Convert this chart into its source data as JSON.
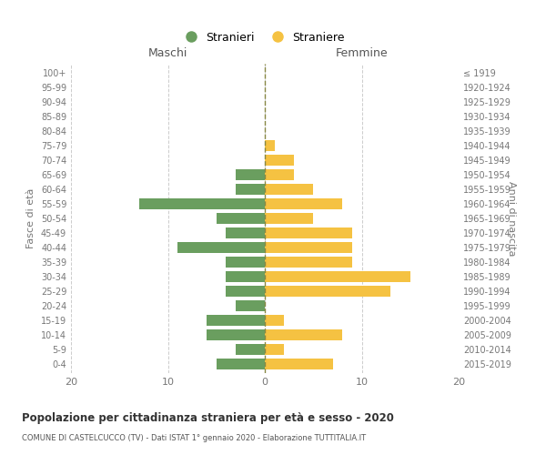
{
  "age_groups": [
    "0-4",
    "5-9",
    "10-14",
    "15-19",
    "20-24",
    "25-29",
    "30-34",
    "35-39",
    "40-44",
    "45-49",
    "50-54",
    "55-59",
    "60-64",
    "65-69",
    "70-74",
    "75-79",
    "80-84",
    "85-89",
    "90-94",
    "95-99",
    "100+"
  ],
  "birth_years": [
    "2015-2019",
    "2010-2014",
    "2005-2009",
    "2000-2004",
    "1995-1999",
    "1990-1994",
    "1985-1989",
    "1980-1984",
    "1975-1979",
    "1970-1974",
    "1965-1969",
    "1960-1964",
    "1955-1959",
    "1950-1954",
    "1945-1949",
    "1940-1944",
    "1935-1939",
    "1930-1934",
    "1925-1929",
    "1920-1924",
    "≤ 1919"
  ],
  "maschi": [
    5,
    3,
    6,
    6,
    3,
    4,
    4,
    4,
    9,
    4,
    5,
    13,
    3,
    3,
    0,
    0,
    0,
    0,
    0,
    0,
    0
  ],
  "femmine": [
    7,
    2,
    8,
    2,
    0,
    13,
    15,
    9,
    9,
    9,
    5,
    8,
    5,
    3,
    3,
    1,
    0,
    0,
    0,
    0,
    0
  ],
  "maschi_color": "#6a9e5f",
  "femmine_color": "#f5c242",
  "title": "Popolazione per cittadinanza straniera per età e sesso - 2020",
  "subtitle": "COMUNE DI CASTELCUCCO (TV) - Dati ISTAT 1° gennaio 2020 - Elaborazione TUTTITALIA.IT",
  "xlabel_left": "Maschi",
  "xlabel_right": "Femmine",
  "ylabel_left": "Fasce di età",
  "ylabel_right": "Anni di nascita",
  "legend_stranieri": "Stranieri",
  "legend_straniere": "Straniere",
  "xlim": 20,
  "background_color": "#ffffff",
  "grid_color": "#cccccc",
  "bar_height": 0.75
}
